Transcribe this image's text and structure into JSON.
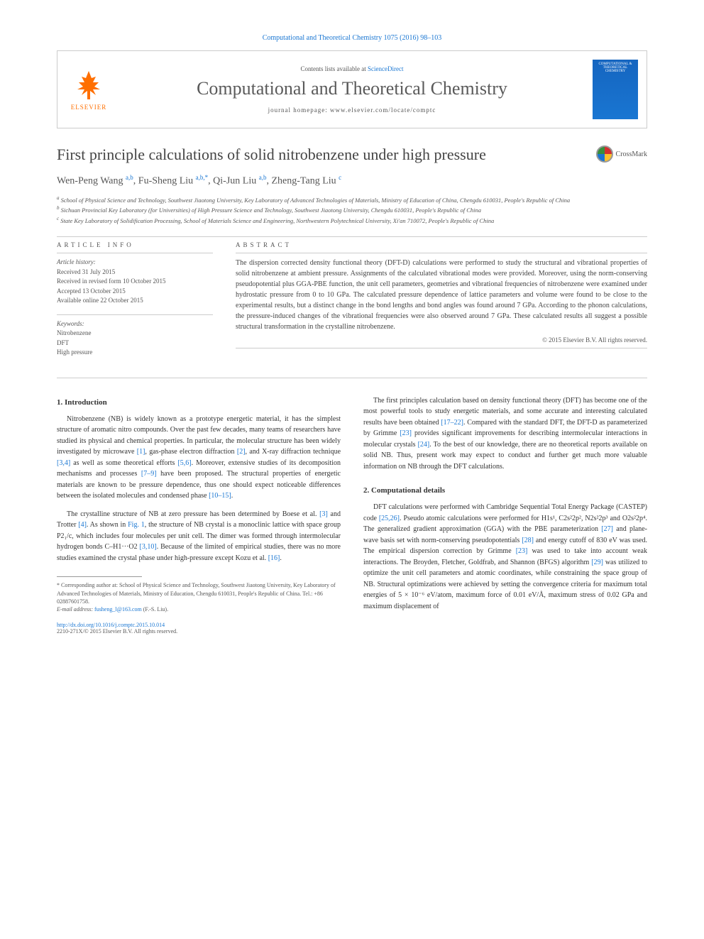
{
  "journalRef": "Computational and Theoretical Chemistry 1075 (2016) 98–103",
  "header": {
    "contentsPrefix": "Contents lists available at ",
    "contentsLink": "ScienceDirect",
    "journalTitle": "Computational and Theoretical Chemistry",
    "homepageLine": "journal homepage: www.elsevier.com/locate/comptc",
    "elsevierLabel": "ELSEVIER",
    "coverText": "COMPUTATIONAL & THEORETICAL CHEMISTRY"
  },
  "crossmarkLabel": "CrossMark",
  "articleTitle": "First principle calculations of solid nitrobenzene under high pressure",
  "authorsHtml": "Wen-Peng Wang <sup>a,b</sup>, Fu-Sheng Liu <sup>a,b,*</sup>, Qi-Jun Liu <sup>a,b</sup>, Zheng-Tang Liu <sup>c</sup>",
  "affiliations": [
    "a School of Physical Science and Technology, Southwest Jiaotong University, Key Laboratory of Advanced Technologies of Materials, Ministry of Education of China, Chengdu 610031, People's Republic of China",
    "b Sichuan Provincial Key Laboratory (for Universities) of High Pressure Science and Technology, Southwest Jiaotong University, Chengdu 610031, People's Republic of China",
    "c State Key Laboratory of Solidification Processing, School of Materials Science and Engineering, Northwestern Polytechnical University, Xi'an 710072, People's Republic of China"
  ],
  "infoHeading": "ARTICLE INFO",
  "abstractHeading": "ABSTRACT",
  "history": {
    "heading": "Article history:",
    "received": "Received 31 July 2015",
    "revised": "Received in revised form 10 October 2015",
    "accepted": "Accepted 13 October 2015",
    "online": "Available online 22 October 2015"
  },
  "keywords": {
    "heading": "Keywords:",
    "items": [
      "Nitrobenzene",
      "DFT",
      "High pressure"
    ]
  },
  "abstract": "The dispersion corrected density functional theory (DFT-D) calculations were performed to study the structural and vibrational properties of solid nitrobenzene at ambient pressure. Assignments of the calculated vibrational modes were provided. Moreover, using the norm-conserving pseudopotential plus GGA-PBE function, the unit cell parameters, geometries and vibrational frequencies of nitrobenzene were examined under hydrostatic pressure from 0 to 10 GPa. The calculated pressure dependence of lattice parameters and volume were found to be close to the experimental results, but a distinct change in the bond lengths and bond angles was found around 7 GPa. According to the phonon calculations, the pressure-induced changes of the vibrational frequencies were also observed around 7 GPa. These calculated results all suggest a possible structural transformation in the crystalline nitrobenzene.",
  "copyright": "© 2015 Elsevier B.V. All rights reserved.",
  "sections": {
    "intro": {
      "heading": "1. Introduction",
      "p1a": "Nitrobenzene (NB) is widely known as a prototype energetic material, it has the simplest structure of aromatic nitro compounds. Over the past few decades, many teams of researchers have studied its physical and chemical properties. In particular, the molecular structure has been widely investigated by microwave ",
      "r1": "[1]",
      "p1b": ", gas-phase electron diffraction ",
      "r2": "[2]",
      "p1c": ", and X-ray diffraction technique ",
      "r34": "[3,4]",
      "p1d": " as well as some theoretical efforts ",
      "r56": "[5,6]",
      "p1e": ". Moreover, extensive studies of its decomposition mechanisms and processes ",
      "r79": "[7–9]",
      "p1f": " have been proposed. The structural properties of energetic materials are known to be pressure dependence, thus one should expect noticeable differences between the isolated molecules and condensed phase ",
      "r1015": "[10–15]",
      "p1g": ".",
      "p2a": "The crystalline structure of NB at zero pressure has been determined by Boese et al. ",
      "r3": "[3]",
      "p2b": " and Trotter ",
      "r4": "[4]",
      "p2c": ". As shown in ",
      "fig1": "Fig. 1",
      "p2d": ", the structure of NB crystal is a monoclinic lattice with space group P2₁/c, which includes four molecules per unit cell. The dimer was formed through intermolecular hydrogen bonds C–H1···O2 ",
      "r310": "[3,10]",
      "p2e": ". Because of the limited of empirical studies, there was no more studies examined the crystal phase under high-pressure except Kozu et al. ",
      "r16": "[16]",
      "p2f": ".",
      "p3a": "The first principles calculation based on density functional theory (DFT) has become one of the most powerful tools to study energetic materials, and some accurate and interesting calculated results have been obtained ",
      "r1722": "[17–22]",
      "p3b": ". Compared with the standard DFT, the DFT-D as parameterized by Grimme ",
      "r23": "[23]",
      "p3c": " provides significant improvements for describing intermolecular interactions in molecular crystals ",
      "r24": "[24]",
      "p3d": ". To the best of our knowledge, there are no theoretical reports available on solid NB. Thus, present work may expect to conduct and further get much more valuable information on NB through the DFT calculations."
    },
    "comp": {
      "heading": "2. Computational details",
      "p1a": "DFT calculations were performed with Cambridge Sequential Total Energy Package (CASTEP) code ",
      "r2526": "[25,26]",
      "p1b": ". Pseudo atomic calculations were performed for H1s¹, C2s²2p², N2s²2p³ and O2s²2p⁴. The generalized gradient approximation (GGA) with the PBE parameterization ",
      "r27": "[27]",
      "p1c": " and plane-wave basis set with norm-conserving pseudopotentials ",
      "r28": "[28]",
      "p1d": " and energy cutoff of 830 eV was used. The empirical dispersion correction by Grimme ",
      "r23b": "[23]",
      "p1e": " was used to take into account weak interactions. The Broyden, Fletcher, Goldfrab, and Shannon (BFGS) algorithm ",
      "r29": "[29]",
      "p1f": " was utilized to optimize the unit cell parameters and atomic coordinates, while constraining the space group of NB. Structural optimizations were achieved by setting the convergence criteria for maximum total energies of 5 × 10⁻⁶ eV/atom, maximum force of 0.01 eV/Å, maximum stress of 0.02 GPa and maximum displacement of"
    }
  },
  "footnote": {
    "corresp": "* Corresponding author at: School of Physical Science and Technology, Southwest Jiaotong University, Key Laboratory of Advanced Technologies of Materials, Ministry of Education, Chengdu 610031, People's Republic of China. Tel.: +86 02887601758.",
    "emailLabel": "E-mail address: ",
    "email": "fusheng_l@163.com",
    "emailName": " (F.-S. Liu)."
  },
  "footer": {
    "doi": "http://dx.doi.org/10.1016/j.comptc.2015.10.014",
    "issn": "2210-271X/© 2015 Elsevier B.V. All rights reserved."
  },
  "colors": {
    "link": "#1976d2",
    "elsevier": "#ff6f00",
    "text": "#333333",
    "border": "#cccccc",
    "coverBg": "#1565c0"
  },
  "fontSizes": {
    "journalRef": 10,
    "journalTitle": 26,
    "articleTitle": 22,
    "authors": 14,
    "affiliations": 8.5,
    "abstract": 10,
    "body": 10,
    "heading": 11,
    "footnote": 8
  }
}
